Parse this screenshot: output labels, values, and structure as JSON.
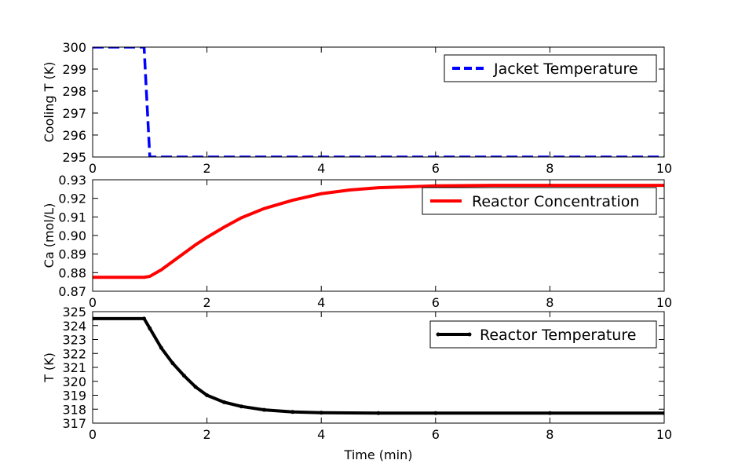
{
  "chart_data": [
    {
      "type": "line",
      "ylabel": "Cooling T (K)",
      "xlabel": "",
      "xlim": [
        0,
        10
      ],
      "ylim": [
        295,
        300
      ],
      "xticks": [
        "0",
        "2",
        "4",
        "6",
        "8",
        "10"
      ],
      "yticks": [
        "295",
        "296",
        "297",
        "298",
        "299",
        "300"
      ],
      "legend_position": "top-right",
      "grid": false,
      "series": [
        {
          "name": "Jacket Temperature",
          "color": "#0000ff",
          "style": "dashed",
          "x": [
            0,
            0.9,
            1.0,
            10
          ],
          "y": [
            300,
            300,
            295,
            295
          ]
        }
      ]
    },
    {
      "type": "line",
      "ylabel": "Ca (mol/L)",
      "xlabel": "",
      "xlim": [
        0,
        10
      ],
      "ylim": [
        0.87,
        0.93
      ],
      "xticks": [
        "0",
        "2",
        "4",
        "6",
        "8",
        "10"
      ],
      "yticks": [
        "0.87",
        "0.88",
        "0.89",
        "0.90",
        "0.91",
        "0.92",
        "0.93"
      ],
      "legend_position": "top-right",
      "grid": false,
      "series": [
        {
          "name": "Reactor Concentration",
          "color": "#ff0000",
          "style": "solid",
          "x": [
            0,
            0.9,
            1.0,
            1.2,
            1.4,
            1.6,
            1.8,
            2.0,
            2.3,
            2.6,
            3.0,
            3.5,
            4.0,
            4.5,
            5.0,
            6.0,
            7.0,
            8.0,
            10.0
          ],
          "y": [
            0.8775,
            0.8775,
            0.878,
            0.8815,
            0.886,
            0.8905,
            0.895,
            0.899,
            0.9045,
            0.9095,
            0.9145,
            0.919,
            0.9225,
            0.9245,
            0.9257,
            0.9267,
            0.927,
            0.927,
            0.927
          ]
        }
      ]
    },
    {
      "type": "line",
      "ylabel": "T (K)",
      "xlabel": "Time (min)",
      "xlim": [
        0,
        10
      ],
      "ylim": [
        317,
        325
      ],
      "xticks": [
        "0",
        "2",
        "4",
        "6",
        "8",
        "10"
      ],
      "yticks": [
        "317",
        "318",
        "319",
        "320",
        "321",
        "322",
        "323",
        "324",
        "325"
      ],
      "legend_position": "top-right",
      "grid": false,
      "series": [
        {
          "name": "Reactor Temperature",
          "color": "#000000",
          "style": "solid-with-markers",
          "x": [
            0,
            0.9,
            1.0,
            1.2,
            1.4,
            1.6,
            1.8,
            2.0,
            2.3,
            2.6,
            3.0,
            3.5,
            4.0,
            5.0,
            6.0,
            8.0,
            10.0
          ],
          "y": [
            324.5,
            324.5,
            323.8,
            322.4,
            321.3,
            320.4,
            319.6,
            319.0,
            318.5,
            318.2,
            317.95,
            317.8,
            317.75,
            317.72,
            317.72,
            317.72,
            317.72
          ]
        }
      ]
    }
  ]
}
